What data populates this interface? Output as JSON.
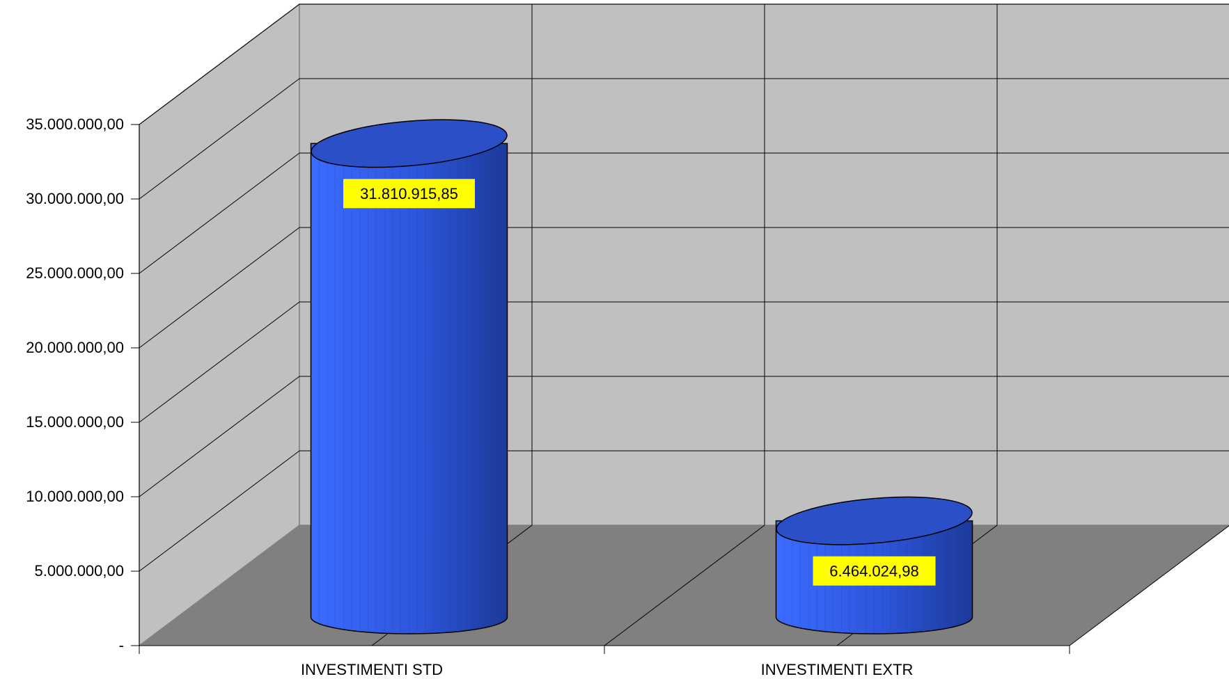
{
  "chart_data": {
    "type": "bar",
    "style": "3d-cylinder",
    "title": "",
    "xlabel": "",
    "ylabel": "",
    "categories": [
      "INVESTIMENTI STD",
      "INVESTIMENTI EXTR"
    ],
    "values": [
      31810915.85,
      6464024.98
    ],
    "data_labels": [
      "31.810.915,85",
      "6.464.024,98"
    ],
    "ylim": [
      0,
      35000000
    ],
    "yticks": [
      0,
      5000000,
      10000000,
      15000000,
      20000000,
      25000000,
      30000000,
      35000000
    ],
    "ytick_labels": [
      "-",
      "5.000.000,00",
      "10.000.000,00",
      "15.000.000,00",
      "20.000.000,00",
      "25.000.000,00",
      "30.000.000,00",
      "35.000.000,00"
    ],
    "grid": true,
    "legend": "none",
    "colors": {
      "bar": "#3366ff",
      "bar_dark": "#1f3fa0",
      "bar_top": "#2a4fc7",
      "back_wall": "#c0c0c0",
      "side_wall": "#c0c0c0",
      "floor": "#808080",
      "data_label_bg": "#ffff00"
    }
  }
}
